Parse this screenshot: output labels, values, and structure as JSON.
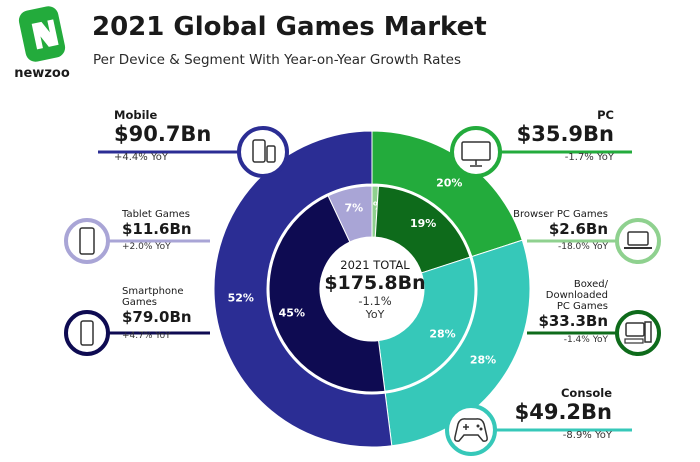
{
  "header": {
    "title": "2021 Global Games Market",
    "subtitle": "Per Device & Segment With Year-on-Year Growth Rates",
    "brand": "newzoo"
  },
  "center": {
    "label": "2021 TOTAL",
    "value": "$175.8Bn",
    "growth": "-1.1%",
    "growth_unit": "YoY"
  },
  "labels": {
    "mobile": {
      "name": "Mobile",
      "value": "$90.7Bn",
      "yoy": "+4.4% YoY"
    },
    "tablet": {
      "name": "Tablet Games",
      "value": "$11.6Bn",
      "yoy": "+2.0% YoY"
    },
    "smartphone": {
      "name_line1": "Smartphone",
      "name_line2": "Games",
      "value": "$79.0Bn",
      "yoy": "+4.7% YoY"
    },
    "pc": {
      "name": "PC",
      "value": "$35.9Bn",
      "yoy": "-1.7% YoY"
    },
    "browser": {
      "name": "Browser PC Games",
      "value": "$2.6Bn",
      "yoy": "-18.0% YoY"
    },
    "boxed": {
      "name_line1": "Boxed/",
      "name_line2": "Downloaded",
      "name_line3": "PC Games",
      "value": "$33.3Bn",
      "yoy": "-1.4% YoY"
    },
    "console": {
      "name": "Console",
      "value": "$49.2Bn",
      "yoy": "-8.9% YoY"
    }
  },
  "colors": {
    "mobile": "#2b2d94",
    "smartphone": "#0e0b52",
    "tablet": "#a9a5d6",
    "pc": "#23ab3c",
    "boxed_pc": "#0e6b1b",
    "browser_pc": "#8fd18f",
    "console": "#36c8b9",
    "logo": "#23ab3c"
  },
  "chart_data": [
    {
      "type": "pie",
      "ring": "outer",
      "categories": [
        "PC",
        "Console",
        "Mobile"
      ],
      "values": [
        20,
        28,
        52
      ],
      "labels": [
        "20%",
        "28%",
        "52%"
      ]
    },
    {
      "type": "pie",
      "ring": "inner",
      "categories": [
        "Browser PC Games",
        "Boxed/Downloaded PC Games",
        "Console",
        "Smartphone Games",
        "Tablet Games"
      ],
      "values": [
        1,
        19,
        28,
        45,
        7
      ],
      "labels": [
        "1%",
        "19%",
        "28%",
        "45%",
        "7%"
      ]
    }
  ]
}
